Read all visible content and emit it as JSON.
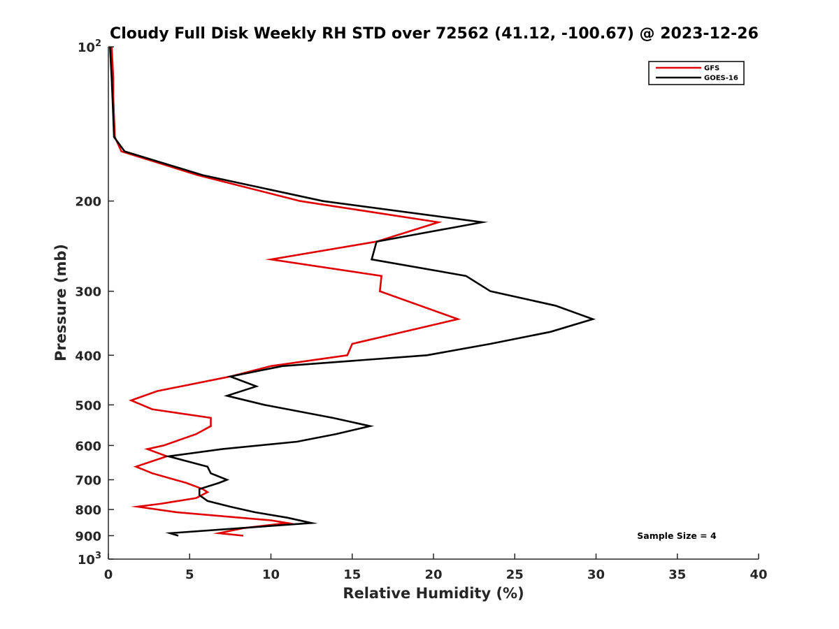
{
  "chart_data": {
    "type": "line",
    "title": "Cloudy Full Disk Weekly RH STD over 72562 (41.12, -100.67) @ 2023-12-26",
    "xlabel": "Relative Humidity (%)",
    "ylabel": "Pressure (mb)",
    "xlim": [
      0,
      40
    ],
    "ylim": [
      100,
      1000
    ],
    "y_scale": "log",
    "y_reversed": true,
    "grid": false,
    "legend_position": "top-right",
    "x_ticks": [
      {
        "value": 0,
        "label": "0"
      },
      {
        "value": 5,
        "label": "5"
      },
      {
        "value": 10,
        "label": "10"
      },
      {
        "value": 15,
        "label": "15"
      },
      {
        "value": 20,
        "label": "20"
      },
      {
        "value": 25,
        "label": "25"
      },
      {
        "value": 30,
        "label": "30"
      },
      {
        "value": 35,
        "label": "35"
      },
      {
        "value": 40,
        "label": "40"
      }
    ],
    "y_ticks": [
      {
        "value": 100,
        "base": "10",
        "exp": "2"
      },
      {
        "value": 200,
        "label": "200"
      },
      {
        "value": 300,
        "label": "300"
      },
      {
        "value": 400,
        "label": "400"
      },
      {
        "value": 500,
        "label": "500"
      },
      {
        "value": 600,
        "label": "600"
      },
      {
        "value": 700,
        "label": "700"
      },
      {
        "value": 800,
        "label": "800"
      },
      {
        "value": 900,
        "label": "900"
      },
      {
        "value": 1000,
        "base": "10",
        "exp": "3"
      }
    ],
    "annotation": "Sample Size = 4",
    "series": [
      {
        "name": "GFS",
        "color": "#e00000",
        "points": [
          [
            0.2,
            100
          ],
          [
            0.3,
            115
          ],
          [
            0.3,
            125
          ],
          [
            0.35,
            137
          ],
          [
            0.4,
            150
          ],
          [
            0.8,
            160
          ],
          [
            5.5,
            178
          ],
          [
            11.8,
            200
          ],
          [
            20.3,
            220
          ],
          [
            16.5,
            240
          ],
          [
            10.0,
            260
          ],
          [
            16.8,
            280
          ],
          [
            16.7,
            300
          ],
          [
            21.5,
            340
          ],
          [
            15.0,
            380
          ],
          [
            14.7,
            400
          ],
          [
            10.0,
            420
          ],
          [
            7.5,
            440
          ],
          [
            3.0,
            470
          ],
          [
            1.4,
            490
          ],
          [
            2.7,
            510
          ],
          [
            6.3,
            530
          ],
          [
            6.3,
            550
          ],
          [
            5.4,
            570
          ],
          [
            3.4,
            600
          ],
          [
            2.4,
            610
          ],
          [
            3.6,
            630
          ],
          [
            1.7,
            660
          ],
          [
            2.7,
            680
          ],
          [
            4.8,
            710
          ],
          [
            5.8,
            730
          ],
          [
            6.1,
            740
          ],
          [
            5.4,
            760
          ],
          [
            3.2,
            780
          ],
          [
            1.8,
            790
          ],
          [
            4.2,
            810
          ],
          [
            10.0,
            840
          ],
          [
            11.0,
            850
          ],
          [
            8.3,
            870
          ],
          [
            6.8,
            890
          ],
          [
            8.3,
            900
          ]
        ]
      },
      {
        "name": "GOES-16",
        "color": "#000000",
        "points": [
          [
            0.1,
            100
          ],
          [
            0.2,
            115
          ],
          [
            0.25,
            125
          ],
          [
            0.3,
            137
          ],
          [
            0.35,
            150
          ],
          [
            1.0,
            160
          ],
          [
            5.8,
            178
          ],
          [
            13.2,
            200
          ],
          [
            23.0,
            220
          ],
          [
            16.5,
            240
          ],
          [
            16.2,
            260
          ],
          [
            22.0,
            280
          ],
          [
            23.5,
            300
          ],
          [
            27.5,
            320
          ],
          [
            29.8,
            340
          ],
          [
            27.2,
            360
          ],
          [
            23.5,
            380
          ],
          [
            19.6,
            400
          ],
          [
            10.7,
            420
          ],
          [
            7.5,
            440
          ],
          [
            9.1,
            460
          ],
          [
            7.3,
            480
          ],
          [
            9.6,
            500
          ],
          [
            13.8,
            530
          ],
          [
            16.1,
            550
          ],
          [
            14.0,
            570
          ],
          [
            11.6,
            590
          ],
          [
            7.0,
            610
          ],
          [
            3.7,
            630
          ],
          [
            6.1,
            660
          ],
          [
            6.3,
            680
          ],
          [
            7.3,
            700
          ],
          [
            6.8,
            710
          ],
          [
            5.6,
            730
          ],
          [
            5.6,
            750
          ],
          [
            6.1,
            770
          ],
          [
            7.5,
            790
          ],
          [
            9.0,
            810
          ],
          [
            11.0,
            830
          ],
          [
            12.5,
            850
          ],
          [
            3.8,
            890
          ],
          [
            4.3,
            900
          ]
        ]
      }
    ]
  }
}
